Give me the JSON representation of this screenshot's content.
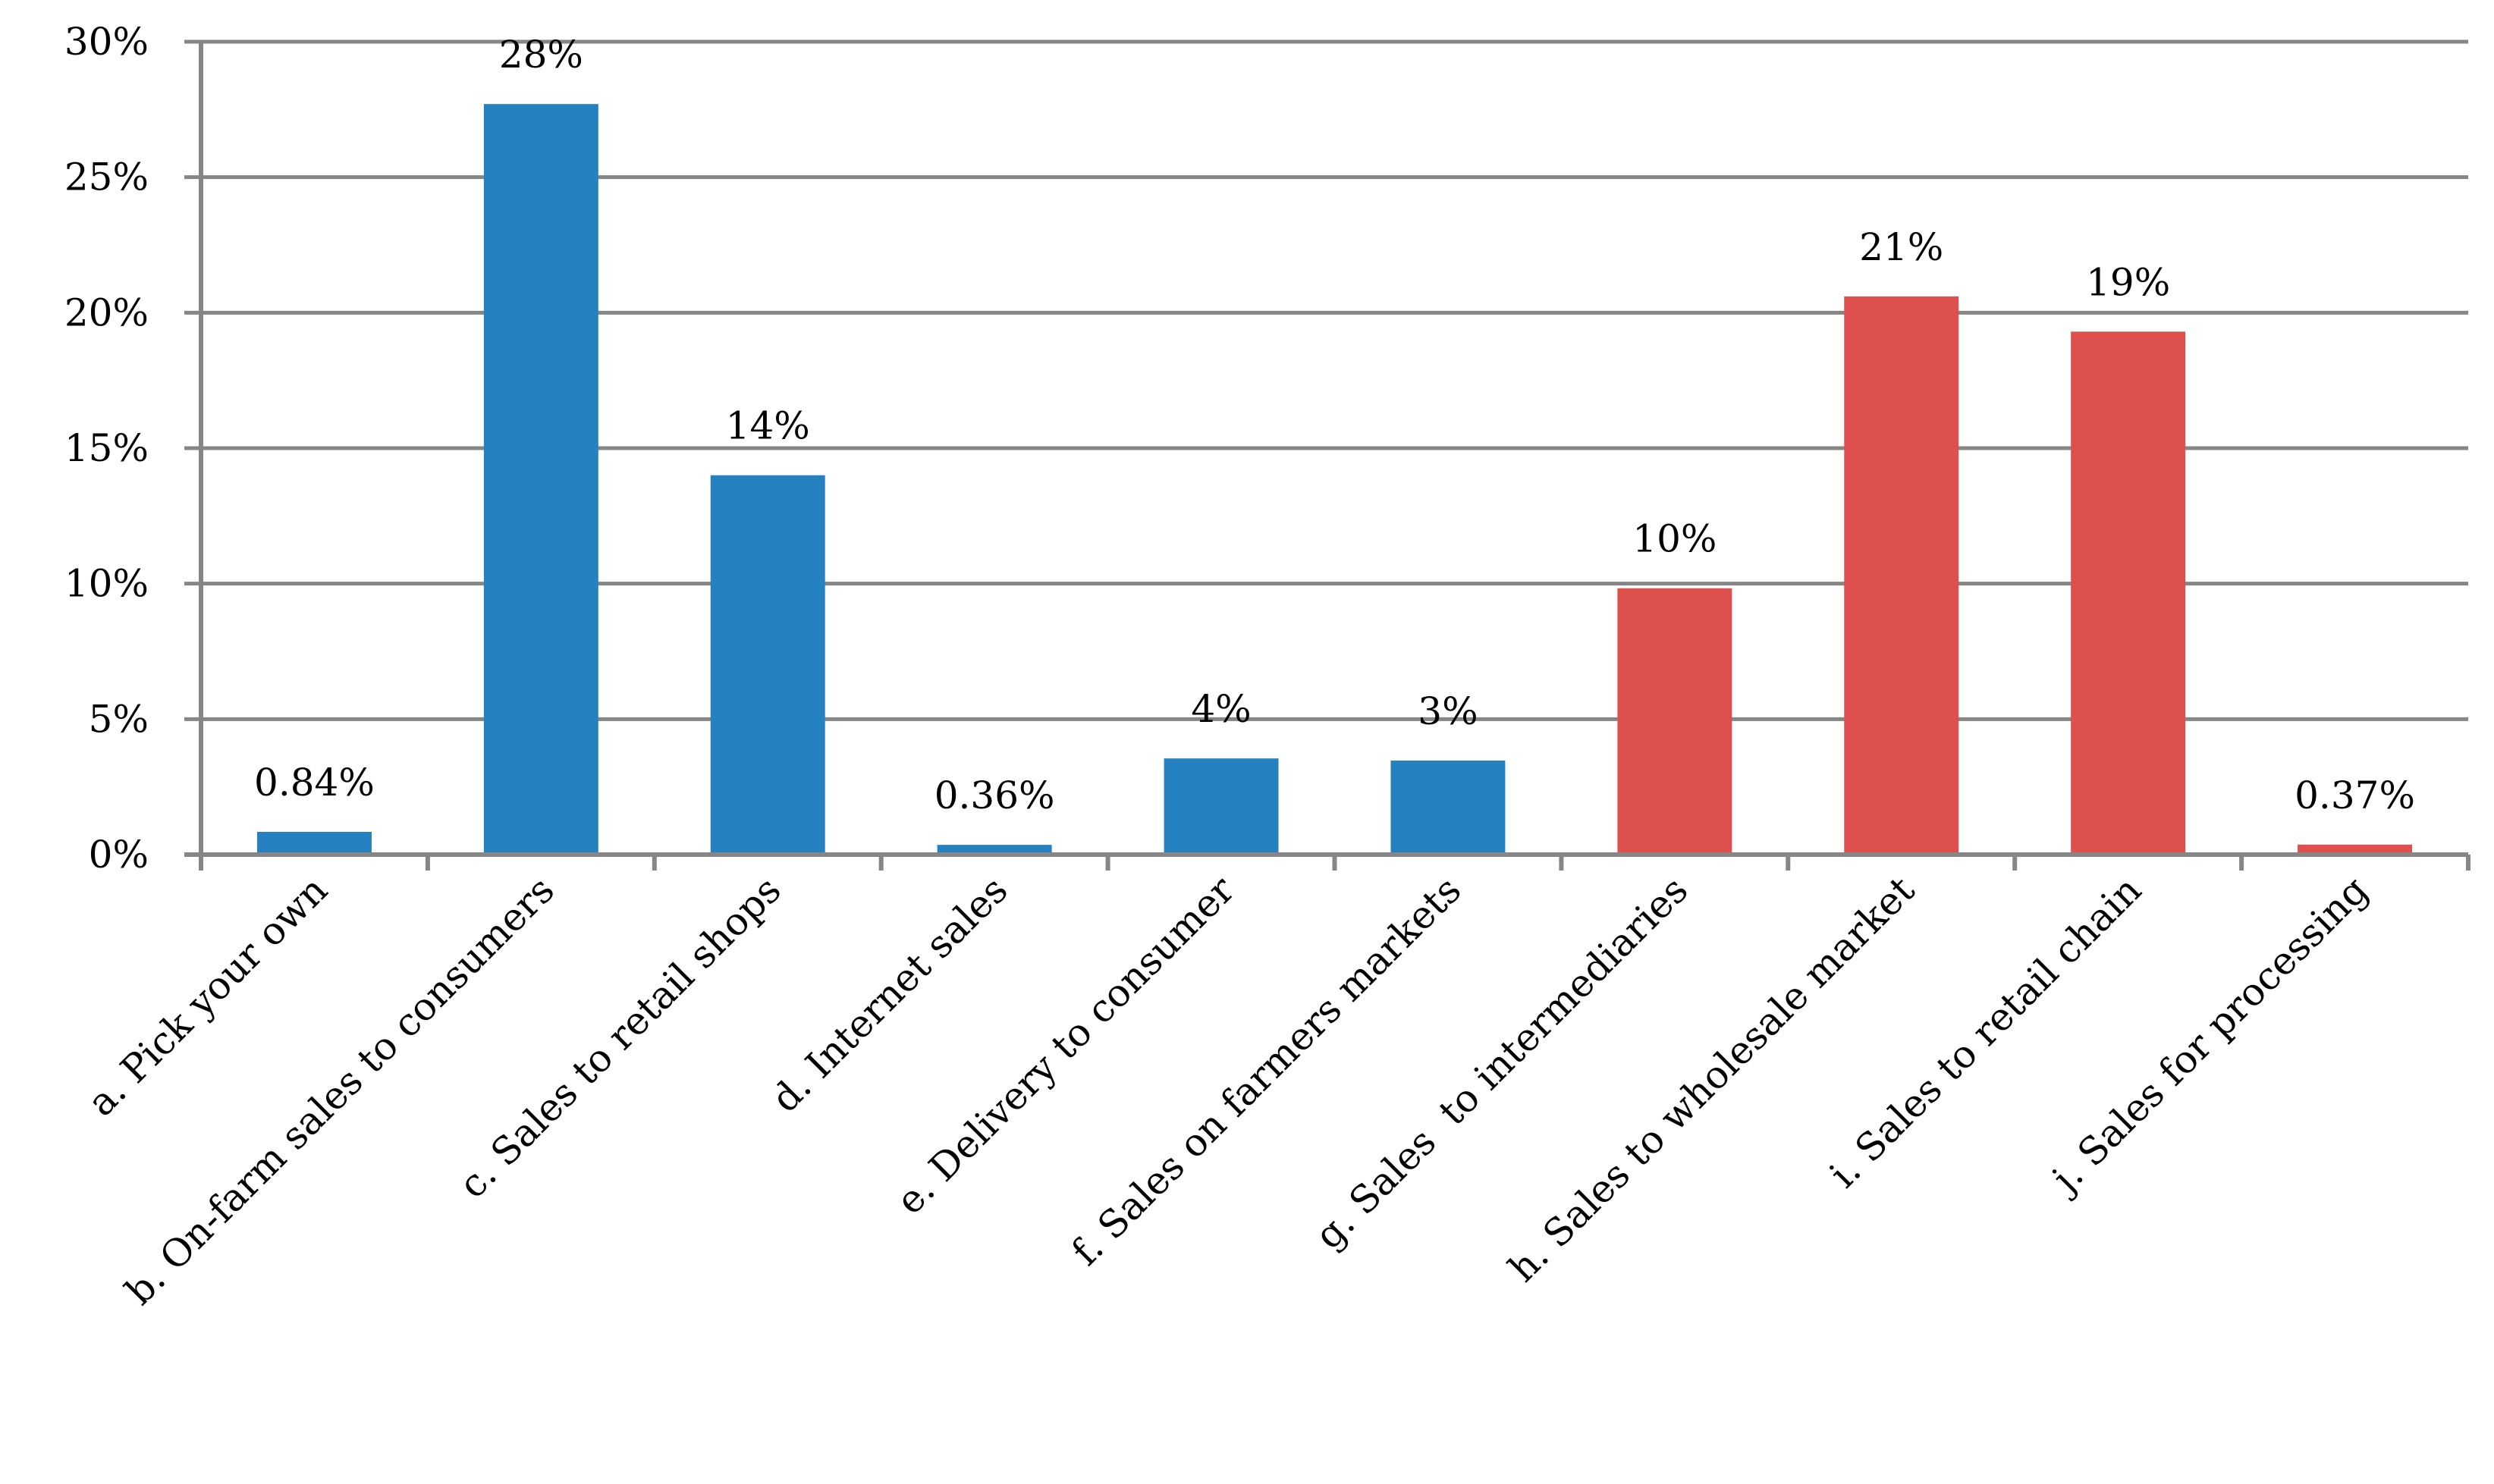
{
  "chart_data": {
    "type": "bar",
    "title": "",
    "xlabel": "",
    "ylabel": "",
    "ylim": [
      0,
      30
    ],
    "y_ticks": [
      "0%",
      "5%",
      "10%",
      "15%",
      "20%",
      "25%",
      "30%"
    ],
    "grid": true,
    "categories": [
      "a. Pick your own",
      "b. On-farm sales to consumers",
      "c. Sales to retail shops",
      "d. Internet sales",
      "e. Delivery to consumer",
      "f. Sales on farmers markets",
      "g. Sales  to intermediaries",
      "h. Sales to wholesale market",
      "i. Sales to retail chain",
      "j. Sales for processing"
    ],
    "values": [
      0.84,
      27.7,
      14.0,
      0.36,
      3.55,
      3.47,
      9.83,
      20.6,
      19.3,
      0.37
    ],
    "data_labels": [
      "0.84%",
      "28%",
      "14%",
      "0.36%",
      "4%",
      "3%",
      "10%",
      "21%",
      "19%",
      "0.37%"
    ],
    "bar_colors": [
      "#2681C0",
      "#2681C0",
      "#2681C0",
      "#2681C0",
      "#2681C0",
      "#2681C0",
      "#DE504E",
      "#DE504E",
      "#DE504E",
      "#DE504E"
    ],
    "grid_color": "#868686"
  }
}
